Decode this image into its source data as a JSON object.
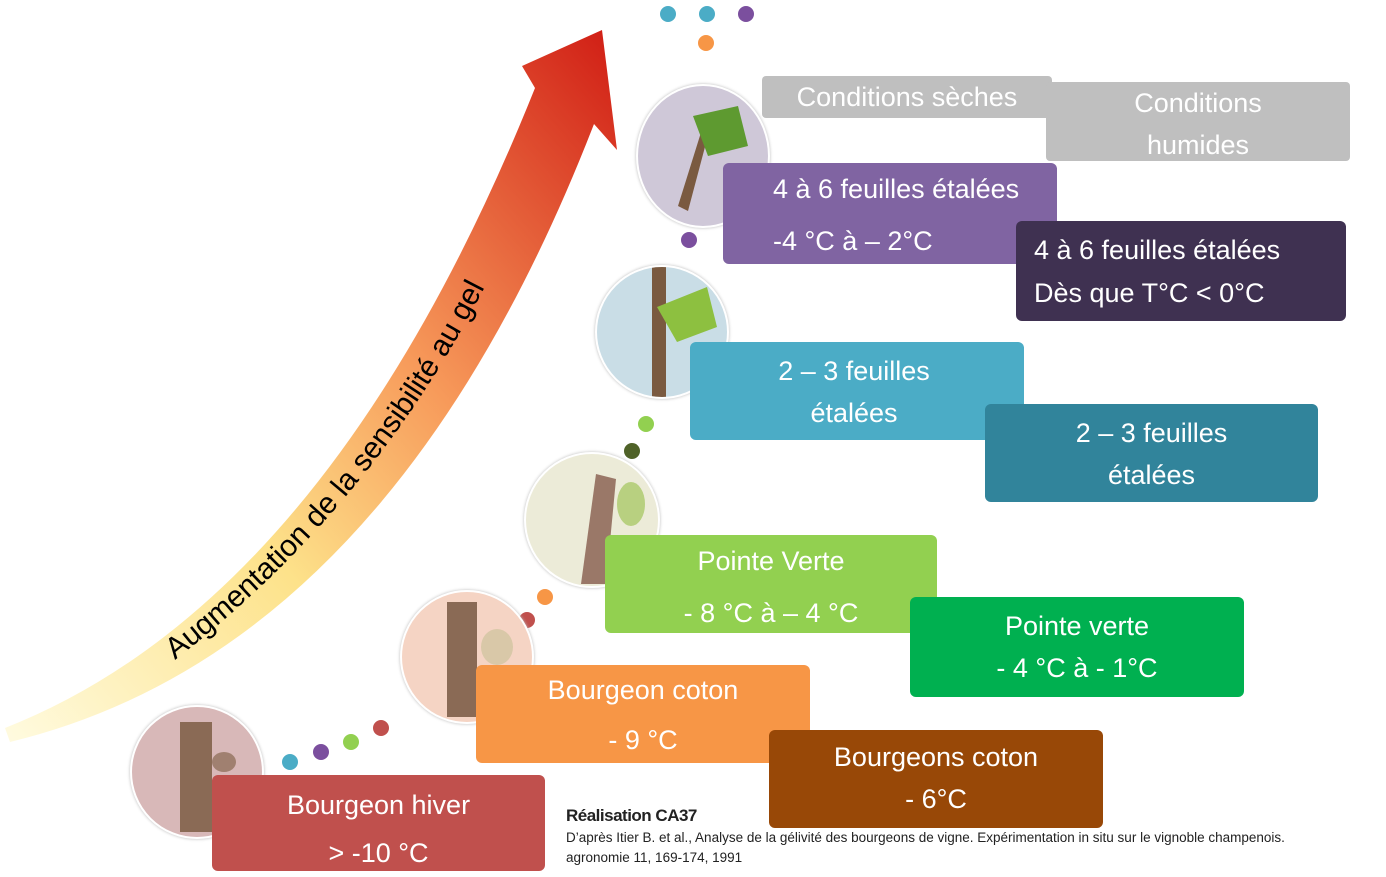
{
  "arrow_label": "Augmentation  de la sensibilité au gel",
  "headers": {
    "dry": "Conditions sèches",
    "humid": [
      "Conditions",
      "humides"
    ]
  },
  "dry_stages": [
    {
      "lines": [
        "Bourgeon hiver",
        "> -10 °C"
      ]
    },
    {
      "lines": [
        "Bourgeon coton",
        "- 9 °C"
      ]
    },
    {
      "lines": [
        "Pointe Verte",
        "- 8 °C à – 4 °C"
      ]
    },
    {
      "lines": [
        "2 – 3 feuilles",
        "étalées"
      ]
    },
    {
      "lines": [
        "4 à 6 feuilles étalées",
        "-4 °C à – 2°C"
      ]
    }
  ],
  "humid_stages": [
    {
      "lines": [
        "Bourgeons coton",
        "- 6°C"
      ]
    },
    {
      "lines": [
        "Pointe verte",
        "- 4 °C à - 1°C"
      ]
    },
    {
      "lines": [
        "2 – 3 feuilles",
        "étalées"
      ]
    },
    {
      "lines": [
        "4 à 6 feuilles étalées",
        "Dès que T°C < 0°C"
      ]
    }
  ],
  "credits": {
    "author": "Réalisation CA37",
    "source": "D’après Itier B. et al., Analyse de la gélivité des bourgeons de vigne. Expérimentation in situ sur le vignoble champenois. agronomie 11, 169-174, 1991"
  }
}
